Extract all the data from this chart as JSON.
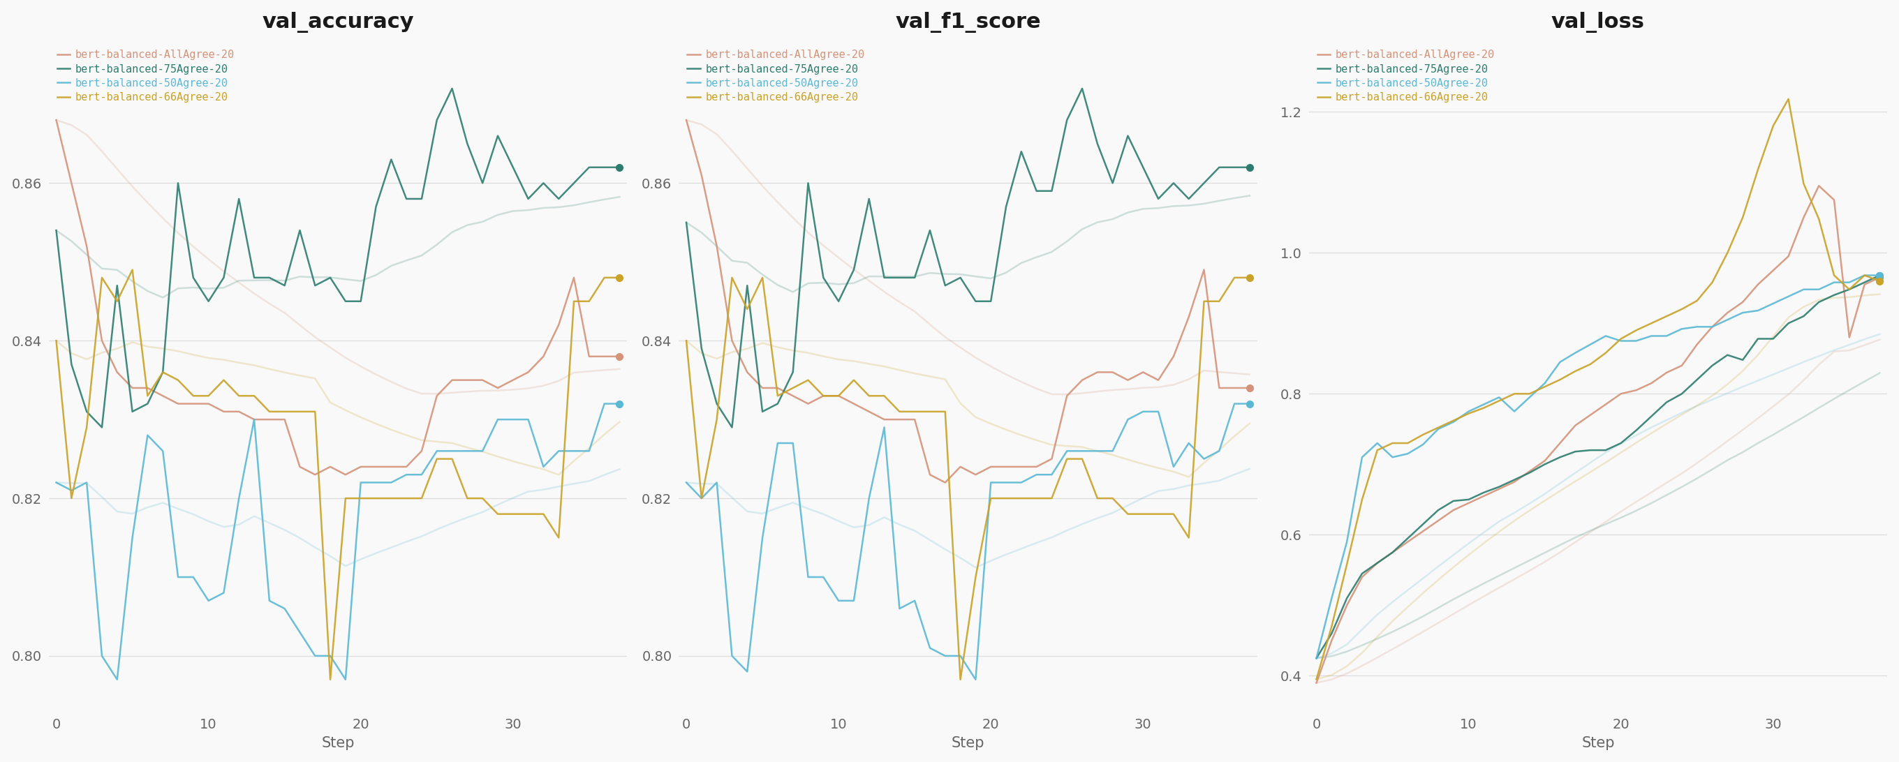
{
  "titles": [
    "val_accuracy",
    "val_f1_score",
    "val_loss"
  ],
  "xlabel": "Step",
  "legend_labels": [
    "bert-balanced-AllAgree-20",
    "bert-balanced-75Agree-20",
    "bert-balanced-50Agree-20",
    "bert-balanced-66Agree-20"
  ],
  "colors": [
    "#d4937a",
    "#2d7d6e",
    "#5bb8d4",
    "#c9a227"
  ],
  "steps": [
    0,
    1,
    2,
    3,
    4,
    5,
    6,
    7,
    8,
    9,
    10,
    11,
    12,
    13,
    14,
    15,
    16,
    17,
    18,
    19,
    20,
    21,
    22,
    23,
    24,
    25,
    26,
    27,
    28,
    29,
    30,
    31,
    32,
    33,
    34,
    35,
    36,
    37
  ],
  "val_accuracy": {
    "AllAgree": [
      0.868,
      0.86,
      0.852,
      0.84,
      0.836,
      0.834,
      0.834,
      0.833,
      0.832,
      0.832,
      0.832,
      0.831,
      0.831,
      0.83,
      0.83,
      0.83,
      0.824,
      0.823,
      0.824,
      0.823,
      0.824,
      0.824,
      0.824,
      0.824,
      0.826,
      0.833,
      0.835,
      0.835,
      0.835,
      0.834,
      0.835,
      0.836,
      0.838,
      0.842,
      0.848,
      0.838,
      0.838,
      0.838
    ],
    "75Agree": [
      0.854,
      0.837,
      0.831,
      0.829,
      0.847,
      0.831,
      0.832,
      0.836,
      0.86,
      0.848,
      0.845,
      0.848,
      0.858,
      0.848,
      0.848,
      0.847,
      0.854,
      0.847,
      0.848,
      0.845,
      0.845,
      0.857,
      0.863,
      0.858,
      0.858,
      0.868,
      0.872,
      0.865,
      0.86,
      0.866,
      0.862,
      0.858,
      0.86,
      0.858,
      0.86,
      0.862,
      0.862,
      0.862
    ],
    "50Agree": [
      0.822,
      0.821,
      0.822,
      0.8,
      0.797,
      0.815,
      0.828,
      0.826,
      0.81,
      0.81,
      0.807,
      0.808,
      0.82,
      0.83,
      0.807,
      0.806,
      0.803,
      0.8,
      0.8,
      0.797,
      0.822,
      0.822,
      0.822,
      0.823,
      0.823,
      0.826,
      0.826,
      0.826,
      0.826,
      0.83,
      0.83,
      0.83,
      0.824,
      0.826,
      0.826,
      0.826,
      0.832,
      0.832
    ],
    "66Agree": [
      0.84,
      0.82,
      0.829,
      0.848,
      0.845,
      0.849,
      0.833,
      0.836,
      0.835,
      0.833,
      0.833,
      0.835,
      0.833,
      0.833,
      0.831,
      0.831,
      0.831,
      0.831,
      0.797,
      0.82,
      0.82,
      0.82,
      0.82,
      0.82,
      0.82,
      0.825,
      0.825,
      0.82,
      0.82,
      0.818,
      0.818,
      0.818,
      0.818,
      0.815,
      0.845,
      0.845,
      0.848,
      0.848
    ]
  },
  "val_f1_score": {
    "AllAgree": [
      0.868,
      0.861,
      0.852,
      0.84,
      0.836,
      0.834,
      0.834,
      0.833,
      0.832,
      0.833,
      0.833,
      0.832,
      0.831,
      0.83,
      0.83,
      0.83,
      0.823,
      0.822,
      0.824,
      0.823,
      0.824,
      0.824,
      0.824,
      0.824,
      0.825,
      0.833,
      0.835,
      0.836,
      0.836,
      0.835,
      0.836,
      0.835,
      0.838,
      0.843,
      0.849,
      0.834,
      0.834,
      0.834
    ],
    "75Agree": [
      0.855,
      0.839,
      0.832,
      0.829,
      0.847,
      0.831,
      0.832,
      0.836,
      0.86,
      0.848,
      0.845,
      0.849,
      0.858,
      0.848,
      0.848,
      0.848,
      0.854,
      0.847,
      0.848,
      0.845,
      0.845,
      0.857,
      0.864,
      0.859,
      0.859,
      0.868,
      0.872,
      0.865,
      0.86,
      0.866,
      0.862,
      0.858,
      0.86,
      0.858,
      0.86,
      0.862,
      0.862,
      0.862
    ],
    "50Agree": [
      0.822,
      0.82,
      0.822,
      0.8,
      0.798,
      0.815,
      0.827,
      0.827,
      0.81,
      0.81,
      0.807,
      0.807,
      0.82,
      0.829,
      0.806,
      0.807,
      0.801,
      0.8,
      0.8,
      0.797,
      0.822,
      0.822,
      0.822,
      0.823,
      0.823,
      0.826,
      0.826,
      0.826,
      0.826,
      0.83,
      0.831,
      0.831,
      0.824,
      0.827,
      0.825,
      0.826,
      0.832,
      0.832
    ],
    "66Agree": [
      0.84,
      0.82,
      0.83,
      0.848,
      0.844,
      0.848,
      0.833,
      0.834,
      0.835,
      0.833,
      0.833,
      0.835,
      0.833,
      0.833,
      0.831,
      0.831,
      0.831,
      0.831,
      0.797,
      0.81,
      0.82,
      0.82,
      0.82,
      0.82,
      0.82,
      0.825,
      0.825,
      0.82,
      0.82,
      0.818,
      0.818,
      0.818,
      0.818,
      0.815,
      0.845,
      0.845,
      0.848,
      0.848
    ]
  },
  "val_loss": {
    "AllAgree": [
      0.39,
      0.45,
      0.5,
      0.54,
      0.56,
      0.575,
      0.59,
      0.605,
      0.62,
      0.635,
      0.645,
      0.655,
      0.665,
      0.675,
      0.69,
      0.705,
      0.73,
      0.755,
      0.77,
      0.785,
      0.8,
      0.805,
      0.815,
      0.83,
      0.84,
      0.87,
      0.895,
      0.915,
      0.93,
      0.955,
      0.975,
      0.995,
      1.05,
      1.095,
      1.075,
      0.88,
      0.955,
      0.965
    ],
    "75Agree": [
      0.425,
      0.46,
      0.51,
      0.545,
      0.56,
      0.575,
      0.595,
      0.615,
      0.635,
      0.648,
      0.65,
      0.66,
      0.668,
      0.678,
      0.688,
      0.7,
      0.71,
      0.718,
      0.72,
      0.72,
      0.73,
      0.748,
      0.768,
      0.788,
      0.8,
      0.82,
      0.84,
      0.855,
      0.848,
      0.878,
      0.878,
      0.9,
      0.91,
      0.93,
      0.94,
      0.948,
      0.958,
      0.968
    ],
    "50Agree": [
      0.425,
      0.51,
      0.59,
      0.71,
      0.73,
      0.71,
      0.715,
      0.728,
      0.75,
      0.76,
      0.775,
      0.785,
      0.795,
      0.775,
      0.795,
      0.815,
      0.845,
      0.858,
      0.87,
      0.882,
      0.875,
      0.875,
      0.882,
      0.882,
      0.892,
      0.895,
      0.895,
      0.905,
      0.915,
      0.918,
      0.928,
      0.938,
      0.948,
      0.948,
      0.958,
      0.958,
      0.968,
      0.968
    ],
    "66Agree": [
      0.395,
      0.47,
      0.558,
      0.65,
      0.72,
      0.73,
      0.73,
      0.742,
      0.752,
      0.762,
      0.772,
      0.78,
      0.79,
      0.8,
      0.8,
      0.81,
      0.82,
      0.832,
      0.842,
      0.858,
      0.878,
      0.89,
      0.9,
      0.91,
      0.92,
      0.932,
      0.958,
      1.0,
      1.05,
      1.118,
      1.18,
      1.218,
      1.098,
      1.048,
      0.968,
      0.948,
      0.968,
      0.96
    ]
  },
  "ylims": {
    "val_accuracy": [
      0.793,
      0.878
    ],
    "val_f1_score": [
      0.793,
      0.878
    ],
    "val_loss": [
      0.35,
      1.3
    ]
  },
  "yticks": {
    "val_accuracy": [
      0.8,
      0.82,
      0.84,
      0.86
    ],
    "val_f1_score": [
      0.8,
      0.82,
      0.84,
      0.86
    ],
    "val_loss": [
      0.4,
      0.6,
      0.8,
      1.0,
      1.2
    ]
  },
  "xticks": [
    0,
    10,
    20,
    30
  ],
  "background_color": "#f9f9f9",
  "grid_color": "#dddddd",
  "title_fontsize": 22,
  "label_fontsize": 15,
  "legend_fontsize": 11,
  "tick_fontsize": 14,
  "line_width": 1.8,
  "line_alpha": 0.9,
  "smooth_alpha": 0.22,
  "smooth_beta": 0.92,
  "marker_size": 7
}
